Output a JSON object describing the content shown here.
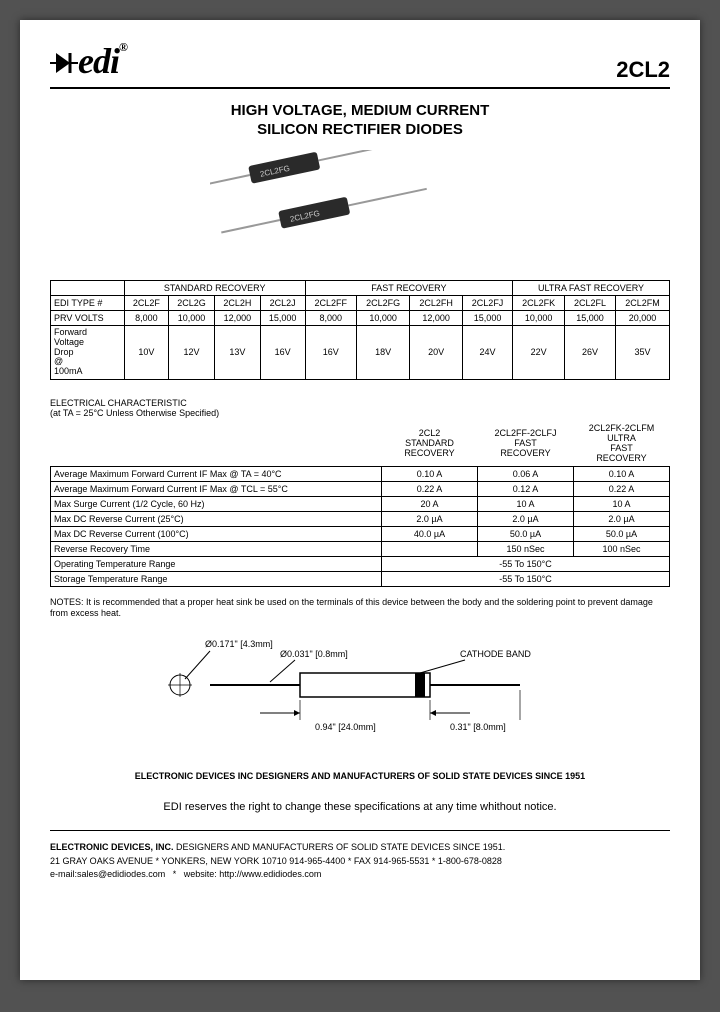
{
  "header": {
    "logo_text": "edi",
    "logo_reg": "®",
    "part_number": "2CL2"
  },
  "title_line1": "HIGH VOLTAGE, MEDIUM CURRENT",
  "title_line2": "SILICON RECTIFIER DIODES",
  "diode_label1": "2CL2FG",
  "diode_label2": "2CL2FG",
  "table1": {
    "group_headers": [
      "STANDARD RECOVERY",
      "FAST RECOVERY",
      "ULTRA FAST RECOVERY"
    ],
    "row_label1": "EDI TYPE #",
    "types": [
      "2CL2F",
      "2CL2G",
      "2CL2H",
      "2CL2J",
      "2CL2FF",
      "2CL2FG",
      "2CL2FH",
      "2CL2FJ",
      "2CL2FK",
      "2CL2FL",
      "2CL2FM"
    ],
    "row_label2": "PRV VOLTS",
    "prv": [
      "8,000",
      "10,000",
      "12,000",
      "15,000",
      "8,000",
      "10,000",
      "12,000",
      "15,000",
      "10,000",
      "15,000",
      "20,000"
    ],
    "row_label3": "Forward Voltage Drop @ 100mA",
    "vf": [
      "10V",
      "12V",
      "13V",
      "16V",
      "16V",
      "18V",
      "20V",
      "24V",
      "22V",
      "26V",
      "35V"
    ]
  },
  "elec_header": "ELECTRICAL CHARACTERISTIC",
  "elec_cond": "(at TA = 25°C Unless Otherwise Specified)",
  "elec_cols": [
    "2CL2 STANDARD RECOVERY",
    "2CL2FF-2CLFJ FAST RECOVERY",
    "2CL2FK-2CLFM ULTRA FAST RECOVERY"
  ],
  "elec_rows": [
    {
      "label": "Average Maximum Forward Current IF Max @ TA = 40°C",
      "v": [
        "0.10 A",
        "0.06 A",
        "0.10 A"
      ]
    },
    {
      "label": "Average Maximum Forward Current IF Max @ TCL = 55°C",
      "v": [
        "0.22 A",
        "0.12 A",
        "0.22 A"
      ]
    },
    {
      "label": "Max Surge Current (1/2 Cycle, 60 Hz)",
      "v": [
        "20 A",
        "10 A",
        "10 A"
      ]
    },
    {
      "label": "Max DC Reverse Current (25°C)",
      "v": [
        "2.0 µA",
        "2.0 µA",
        "2.0 µA"
      ]
    },
    {
      "label": "Max DC Reverse Current (100°C)",
      "v": [
        "40.0 µA",
        "50.0 µA",
        "50.0 µA"
      ]
    },
    {
      "label": "Reverse Recovery Time",
      "v": [
        "",
        "150 nSec",
        "100 nSec"
      ]
    },
    {
      "label": "Operating Temperature Range",
      "v": [
        "-55 To 150°C"
      ],
      "span": 3
    },
    {
      "label": "Storage Temperature Range",
      "v": [
        "-55 To 150°C"
      ],
      "span": 3
    }
  ],
  "notes": "NOTES: It is recommended that a proper heat sink be used on the terminals of this device between the body and the soldering point to prevent damage from excess heat.",
  "mech": {
    "lead_dia": "Ø0.031\" [0.8mm]",
    "body_dia": "Ø0.171\" [4.3mm]",
    "cathode": "CATHODE BAND",
    "body_len": "0.94\" [24.0mm]",
    "lead_len": "0.31\" [8.0mm]"
  },
  "footer1": "ELECTRONIC DEVICES INC DESIGNERS AND MANUFACTURERS OF SOLID STATE DEVICES SINCE 1951",
  "footer_notice": "EDI reserves the right to change these specifications at any time whithout notice.",
  "footer2_bold": "ELECTRONIC DEVICES, INC.",
  "footer2_rest": " DESIGNERS AND MANUFACTURERS OF SOLID STATE DEVICES SINCE 1951.",
  "footer_addr": "21 GRAY OAKS AVENUE  *  YONKERS, NEW YORK 10710  914-965-4400  *  FAX 914-965-5531  *  1-800-678-0828",
  "footer_email_label": "e-mail:",
  "footer_email": "sales@edidiodes.com",
  "footer_web_label": "website:",
  "footer_web": "http://www.edidiodes.com",
  "colors": {
    "diode_body": "#2a2a2a",
    "lead": "#999999",
    "text": "#000000"
  }
}
